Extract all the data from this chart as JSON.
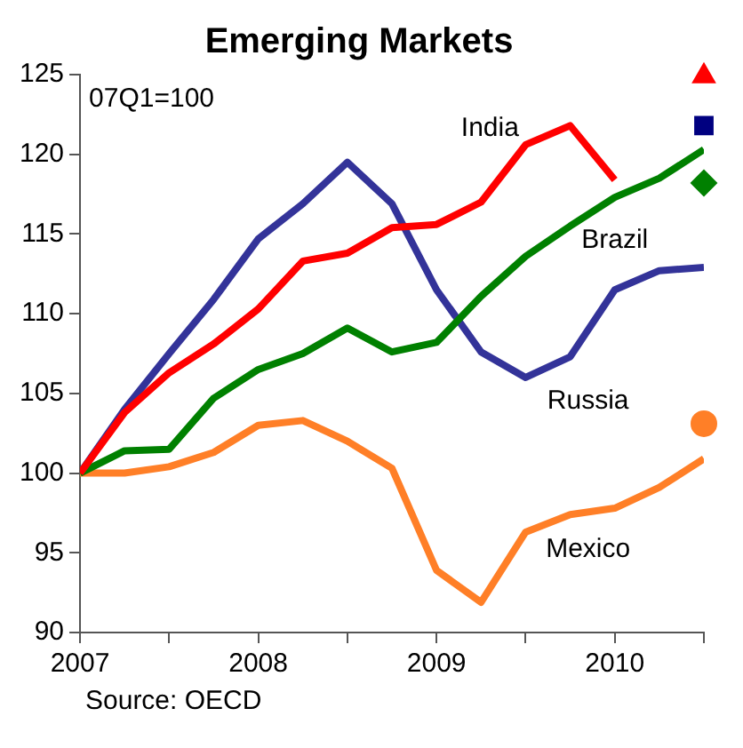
{
  "chart_data": {
    "type": "line",
    "title": "Emerging Markets",
    "annotations": [
      "07Q1=100",
      "Source: OECD"
    ],
    "x": [
      2007,
      2007.25,
      2007.5,
      2007.75,
      2008,
      2008.25,
      2008.5,
      2008.75,
      2009,
      2009.25,
      2009.5,
      2009.75,
      2010,
      2010.25,
      2010.5
    ],
    "series": [
      {
        "name": "India",
        "color": "#ff0000",
        "values": [
          100,
          103.8,
          106.3,
          108.1,
          110.3,
          113.3,
          113.8,
          115.4,
          115.6,
          117.0,
          120.6,
          121.8,
          118.4,
          null,
          null
        ]
      },
      {
        "name": "Brazil",
        "color": "#008000",
        "values": [
          100,
          101.4,
          101.5,
          104.7,
          106.5,
          107.5,
          109.1,
          107.6,
          108.2,
          111.1,
          113.6,
          115.5,
          117.3,
          118.5,
          120.3
        ]
      },
      {
        "name": "Russia",
        "color": "#333399",
        "values": [
          100,
          104,
          107.5,
          110.9,
          114.7,
          116.9,
          119.5,
          116.9,
          111.5,
          107.6,
          106.0,
          107.3,
          111.5,
          112.7,
          112.9
        ]
      },
      {
        "name": "Mexico",
        "color": "#ff7f27",
        "values": [
          100,
          100,
          100.4,
          101.3,
          103.0,
          103.3,
          102.0,
          100.3,
          93.9,
          91.9,
          96.3,
          97.4,
          97.8,
          99.1,
          100.9
        ]
      },
      {
        "type": "scatter",
        "marker": "triangle",
        "color": "#ff0000",
        "values": [
          null,
          null,
          null,
          null,
          null,
          null,
          null,
          null,
          null,
          null,
          null,
          null,
          null,
          null,
          124.9
        ]
      },
      {
        "type": "scatter",
        "marker": "square",
        "color": "#000080",
        "values": [
          null,
          null,
          null,
          null,
          null,
          null,
          null,
          null,
          null,
          null,
          null,
          null,
          null,
          null,
          121.8
        ]
      },
      {
        "type": "scatter",
        "marker": "diamond",
        "color": "#008000",
        "values": [
          null,
          null,
          null,
          null,
          null,
          null,
          null,
          null,
          null,
          null,
          null,
          null,
          null,
          null,
          118.2
        ]
      },
      {
        "type": "scatter",
        "marker": "circle",
        "color": "#ff7f27",
        "values": [
          null,
          null,
          null,
          null,
          null,
          null,
          null,
          null,
          null,
          null,
          null,
          null,
          null,
          null,
          103.1
        ]
      }
    ],
    "xlim": [
      2007,
      2010.5
    ],
    "xticks": [
      2007,
      {
        "value": 2007.5,
        "label": null
      },
      2008,
      {
        "value": 2008.5,
        "label": null
      },
      2009,
      {
        "value": 2009.5,
        "label": null
      },
      2010,
      {
        "value": 2010.5,
        "label": null
      }
    ],
    "ylim": [
      90,
      125
    ],
    "yticks": [
      90,
      95,
      100,
      105,
      110,
      115,
      120,
      125
    ],
    "grid": false,
    "legend": false,
    "line_style": "solid"
  }
}
